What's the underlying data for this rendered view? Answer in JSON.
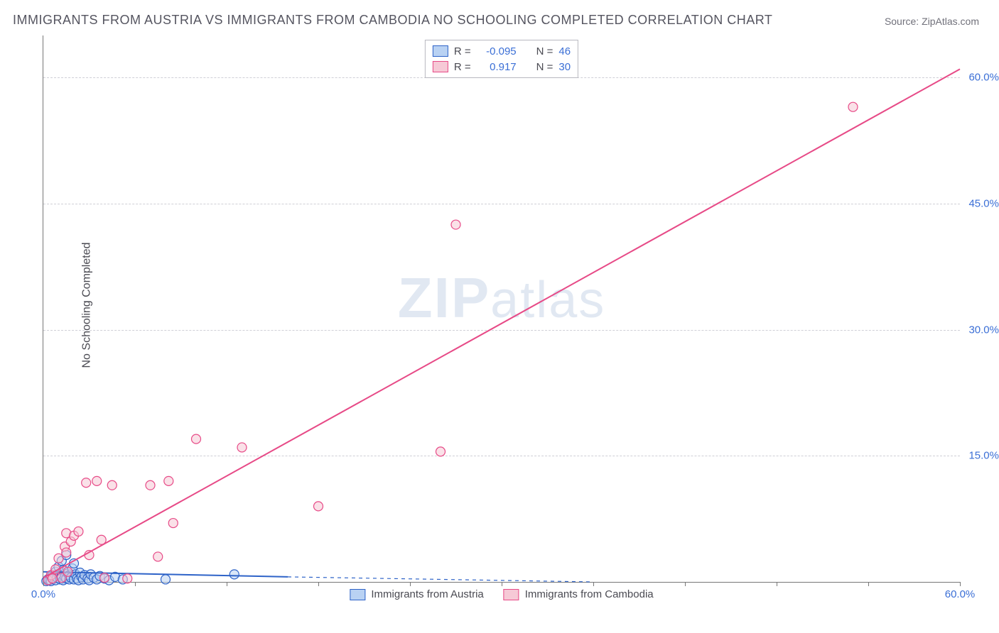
{
  "title": "IMMIGRANTS FROM AUSTRIA VS IMMIGRANTS FROM CAMBODIA NO SCHOOLING COMPLETED CORRELATION CHART",
  "source": "Source: ZipAtlas.com",
  "ylabel": "No Schooling Completed",
  "watermark": "ZIPatlas",
  "chart": {
    "type": "scatter",
    "xlim": [
      0,
      60
    ],
    "ylim": [
      0,
      65
    ],
    "ytick_positions": [
      15,
      30,
      45,
      60
    ],
    "ytick_labels": [
      "15.0%",
      "30.0%",
      "45.0%",
      "60.0%"
    ],
    "xtick_positions": [
      0,
      6,
      12,
      18,
      24,
      30,
      36,
      42,
      48,
      54,
      60
    ],
    "xtick_labels_shown": {
      "0": "0.0%",
      "60": "60.0%"
    },
    "grid_color": "#cfcfd6",
    "background_color": "#ffffff",
    "axis_color": "#777777",
    "tick_label_color": "#3b6fd6",
    "marker_radius": 6.5,
    "marker_stroke_width": 1.2,
    "trendline_width": 2,
    "series": [
      {
        "name": "Immigrants from Austria",
        "fill": "#b9d2f3",
        "fill_opacity": 0.55,
        "stroke": "#2e63c8",
        "R": "-0.095",
        "N": "46",
        "trend": {
          "x1": 0,
          "y1": 1.2,
          "x2": 16,
          "y2": 0.6,
          "dash_after_x": 16,
          "dash_to_x": 36,
          "dash_to_y": 0.0
        },
        "points": [
          [
            0.2,
            0.1
          ],
          [
            0.3,
            0.3
          ],
          [
            0.4,
            0.2
          ],
          [
            0.5,
            0.6
          ],
          [
            0.5,
            0.1
          ],
          [
            0.6,
            0.8
          ],
          [
            0.7,
            0.4
          ],
          [
            0.8,
            1.2
          ],
          [
            0.8,
            0.2
          ],
          [
            0.9,
            0.5
          ],
          [
            1.0,
            0.9
          ],
          [
            1.0,
            1.8
          ],
          [
            1.1,
            0.3
          ],
          [
            1.2,
            2.5
          ],
          [
            1.2,
            0.7
          ],
          [
            1.3,
            1.4
          ],
          [
            1.3,
            0.2
          ],
          [
            1.4,
            0.6
          ],
          [
            1.5,
            0.4
          ],
          [
            1.5,
            3.2
          ],
          [
            1.6,
            1.0
          ],
          [
            1.7,
            0.3
          ],
          [
            1.7,
            0.8
          ],
          [
            1.8,
            0.5
          ],
          [
            1.9,
            1.6
          ],
          [
            2.0,
            0.3
          ],
          [
            2.0,
            2.2
          ],
          [
            2.1,
            0.9
          ],
          [
            2.2,
            0.4
          ],
          [
            2.3,
            0.2
          ],
          [
            2.4,
            1.1
          ],
          [
            2.5,
            0.6
          ],
          [
            2.6,
            0.3
          ],
          [
            2.7,
            0.8
          ],
          [
            2.9,
            0.4
          ],
          [
            3.0,
            0.2
          ],
          [
            3.1,
            0.9
          ],
          [
            3.3,
            0.5
          ],
          [
            3.5,
            0.3
          ],
          [
            3.7,
            0.7
          ],
          [
            4.0,
            0.4
          ],
          [
            4.3,
            0.2
          ],
          [
            4.7,
            0.6
          ],
          [
            5.2,
            0.3
          ],
          [
            8.0,
            0.3
          ],
          [
            12.5,
            0.9
          ]
        ]
      },
      {
        "name": "Immigrants from Cambodia",
        "fill": "#f6c9d6",
        "fill_opacity": 0.55,
        "stroke": "#e74a87",
        "R": "0.917",
        "N": "30",
        "trend": {
          "x1": 0,
          "y1": 0.5,
          "x2": 60,
          "y2": 61.0
        },
        "points": [
          [
            0.3,
            0.2
          ],
          [
            0.5,
            0.8
          ],
          [
            0.6,
            0.4
          ],
          [
            0.8,
            1.5
          ],
          [
            1.0,
            2.8
          ],
          [
            1.2,
            0.5
          ],
          [
            1.4,
            4.2
          ],
          [
            1.5,
            3.5
          ],
          [
            1.5,
            5.8
          ],
          [
            1.6,
            1.2
          ],
          [
            1.8,
            4.8
          ],
          [
            2.0,
            5.5
          ],
          [
            2.3,
            6.0
          ],
          [
            2.8,
            11.8
          ],
          [
            3.0,
            3.2
          ],
          [
            3.5,
            12.0
          ],
          [
            3.8,
            5.0
          ],
          [
            4.0,
            0.5
          ],
          [
            4.5,
            11.5
          ],
          [
            5.5,
            0.4
          ],
          [
            7.0,
            11.5
          ],
          [
            7.5,
            3.0
          ],
          [
            8.2,
            12.0
          ],
          [
            8.5,
            7.0
          ],
          [
            10.0,
            17.0
          ],
          [
            13.0,
            16.0
          ],
          [
            18.0,
            9.0
          ],
          [
            26.0,
            15.5
          ],
          [
            27.0,
            42.5
          ],
          [
            53.0,
            56.5
          ]
        ]
      }
    ]
  },
  "legend_top": {
    "rows": [
      {
        "series_idx": 0,
        "r_label": "R =",
        "n_label": "N ="
      },
      {
        "series_idx": 1,
        "r_label": "R =",
        "n_label": "N ="
      }
    ]
  },
  "legend_bottom": [
    {
      "series_idx": 0
    },
    {
      "series_idx": 1
    }
  ]
}
